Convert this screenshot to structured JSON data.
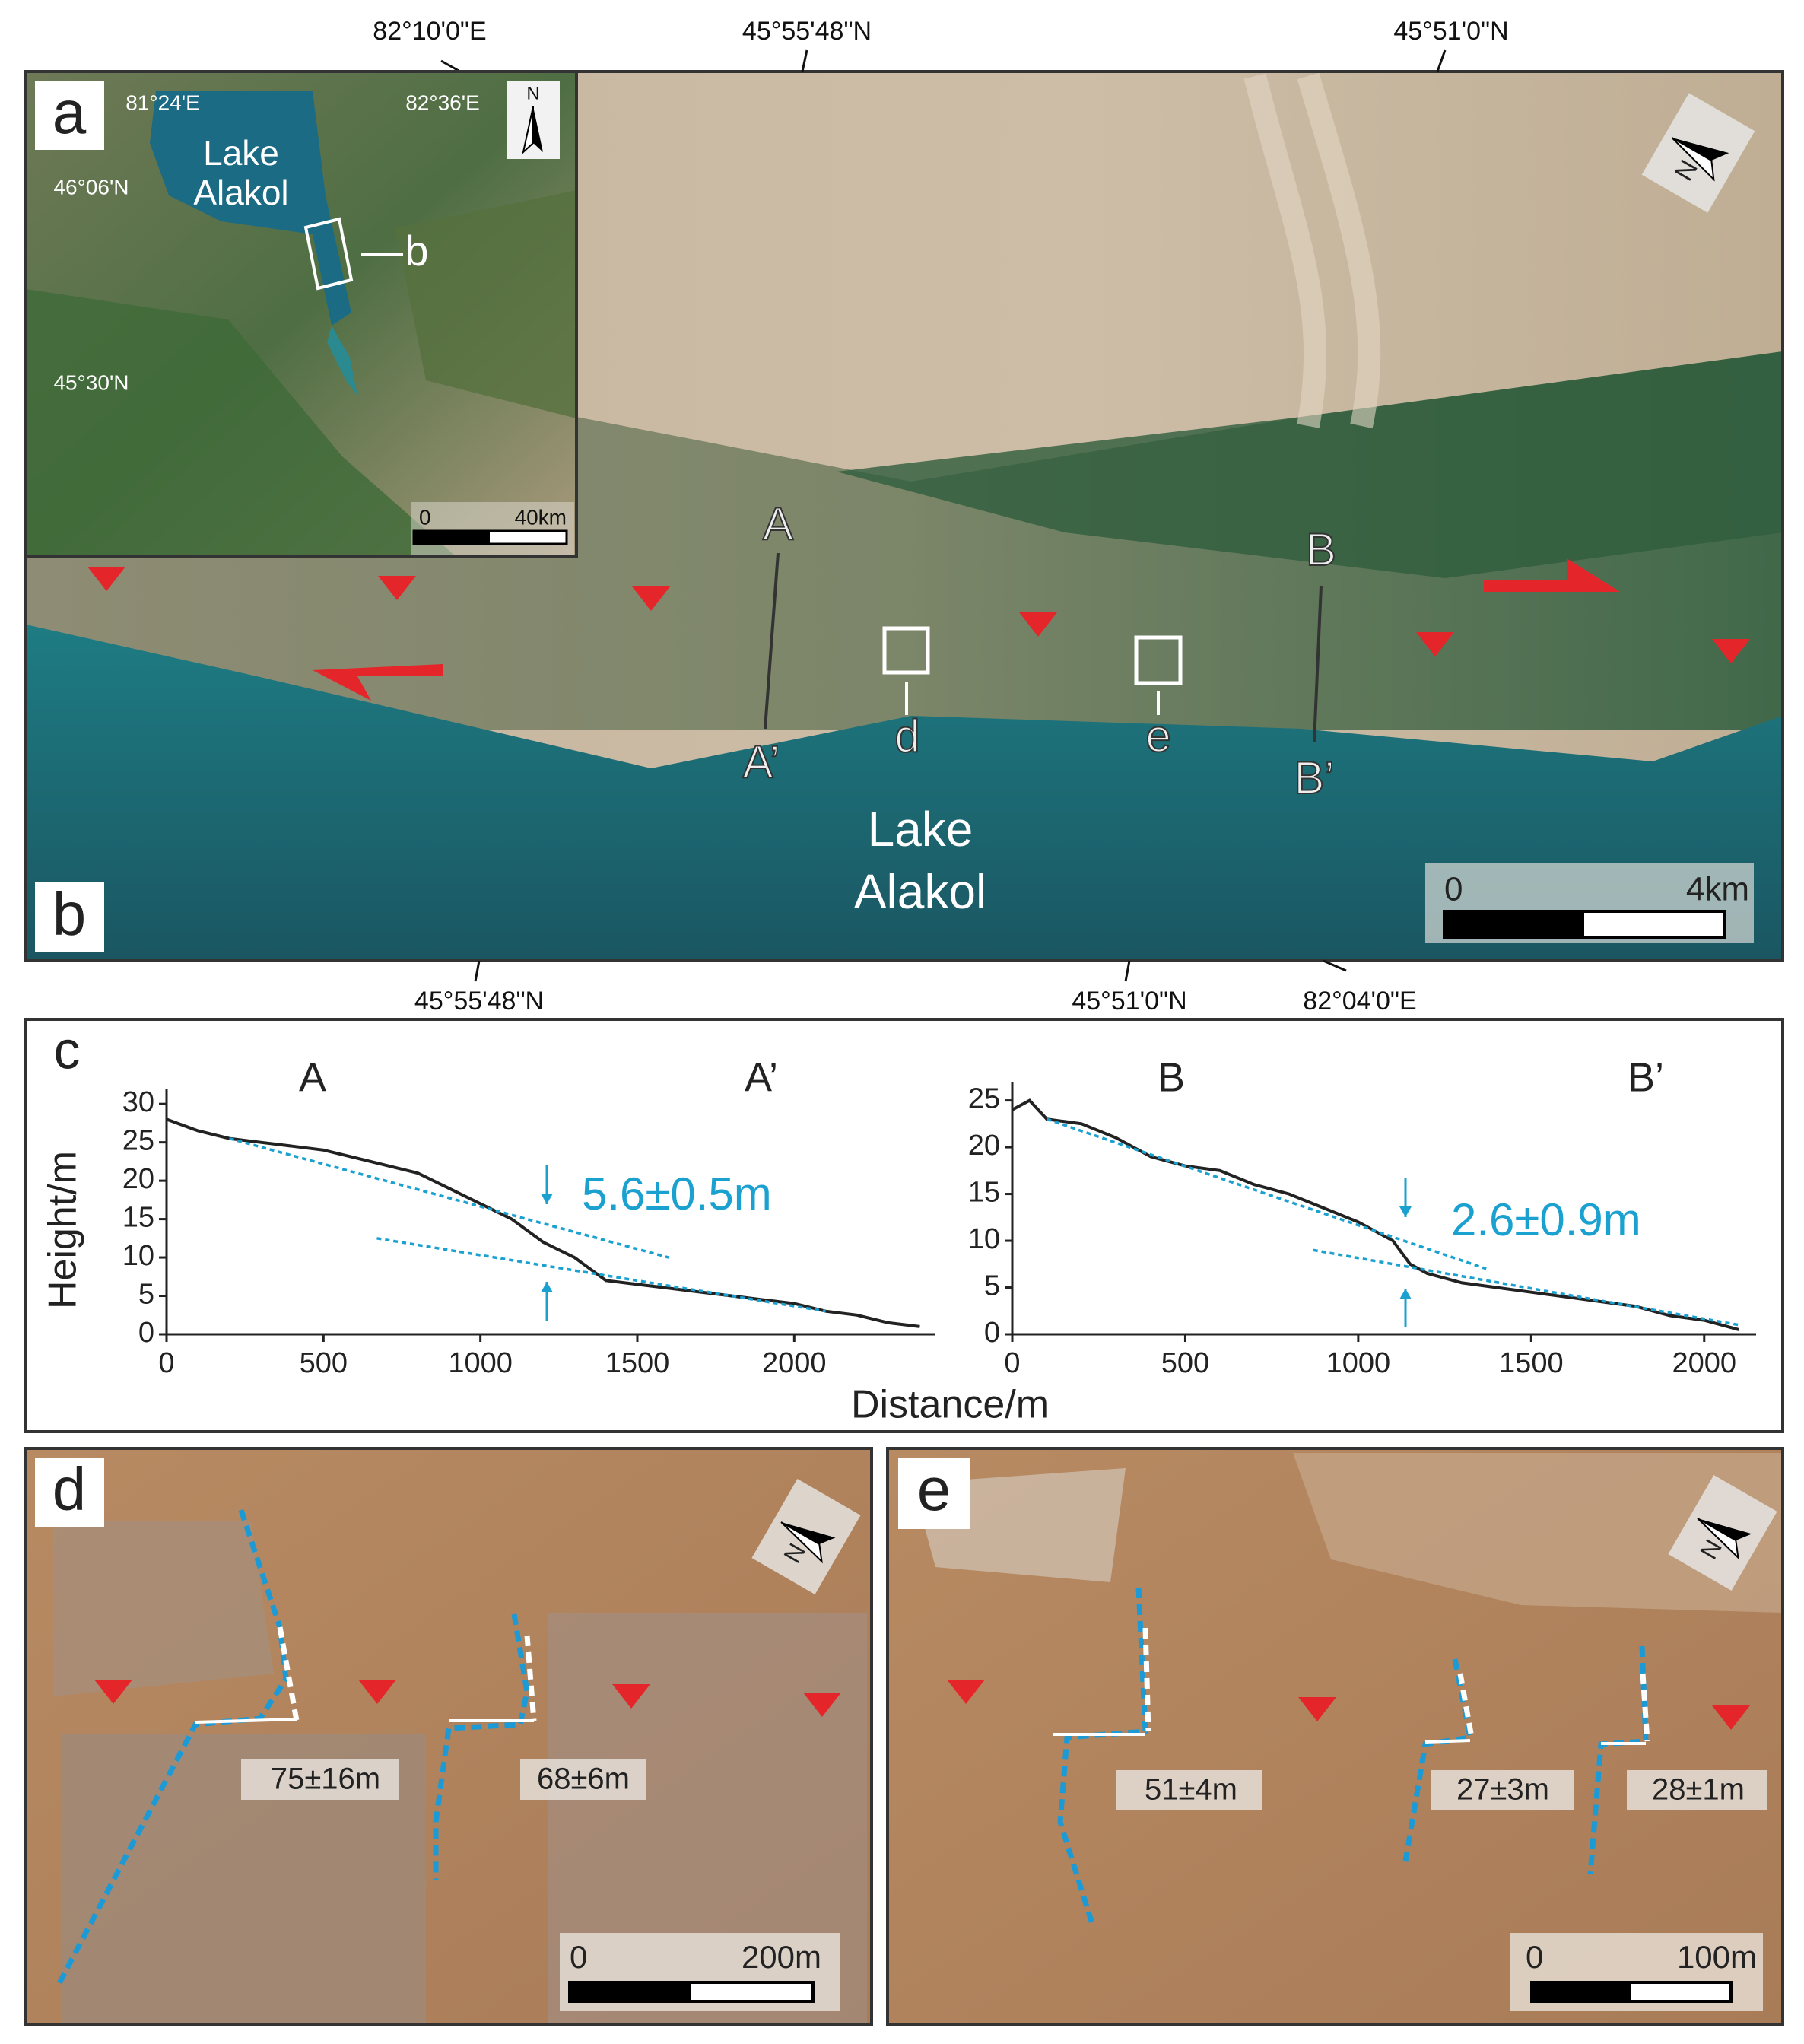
{
  "map_b": {
    "panel_label": "b",
    "north": "N",
    "top_coords": [
      "82°10'0\"E",
      "45°55'48\"N",
      "45°51'0\"N"
    ],
    "bottom_coords": [
      "45°55'48\"N",
      "45°51'0\"N",
      "82°04'0\"E"
    ],
    "profile_labels": [
      "A",
      "A’",
      "B",
      "B’"
    ],
    "box_labels": [
      "d",
      "e"
    ],
    "lake_label": [
      "Lake",
      "Alakol"
    ],
    "scale_labels": [
      "0",
      "4km"
    ]
  },
  "map_a": {
    "panel_label": "a",
    "coords": [
      "81°24'E",
      "82°36'E",
      "46°06'N",
      "45°30'N"
    ],
    "lake_label": [
      "Lake",
      "Alakol"
    ],
    "box_label": "b",
    "north": "N",
    "scale_labels": [
      "0",
      "40km"
    ]
  },
  "panel_c_label": "c",
  "chart_data": [
    {
      "type": "line",
      "start_label": "A",
      "end_label": "A’",
      "annotation": "5.6±0.5m",
      "y_label": "Height/m",
      "x_label": "Distance/m",
      "color": "#222222",
      "fit_color": "#1ba1d0",
      "x": [
        0,
        100,
        200,
        300,
        400,
        500,
        600,
        700,
        800,
        900,
        1000,
        1100,
        1200,
        1300,
        1400,
        1500,
        1600,
        1700,
        1800,
        1900,
        2000,
        2100,
        2200,
        2300,
        2400
      ],
      "values": [
        28,
        26.5,
        25.5,
        25,
        24.5,
        24,
        23,
        22,
        21,
        19,
        17,
        15,
        12,
        10,
        7,
        6.5,
        6,
        5.5,
        5,
        4.5,
        4,
        3,
        2.5,
        1.5,
        1
      ],
      "fit_lines": [
        {
          "x": [
            200,
            1600
          ],
          "values": [
            25.5,
            10
          ]
        },
        {
          "x": [
            670,
            2100
          ],
          "values": [
            12.5,
            3
          ]
        }
      ],
      "xlim": [
        0,
        2450
      ],
      "ylim": [
        0,
        32
      ],
      "xticks": [
        0,
        500,
        1000,
        1500,
        2000
      ],
      "yticks": [
        0,
        5,
        10,
        15,
        20,
        25,
        30
      ]
    },
    {
      "type": "line",
      "start_label": "B",
      "end_label": "B’",
      "annotation": "2.6±0.9m",
      "color": "#222222",
      "fit_color": "#1ba1d0",
      "x": [
        0,
        50,
        100,
        200,
        300,
        400,
        500,
        600,
        700,
        800,
        900,
        1000,
        1100,
        1150,
        1200,
        1300,
        1400,
        1500,
        1600,
        1700,
        1800,
        1900,
        2000,
        2100
      ],
      "values": [
        24,
        25,
        23,
        22.5,
        21,
        19,
        18,
        17.5,
        16,
        15,
        13.5,
        12,
        10,
        7.5,
        6.5,
        5.5,
        5,
        4.5,
        4,
        3.5,
        3,
        2,
        1.5,
        0.5
      ],
      "fit_lines": [
        {
          "x": [
            100,
            1370
          ],
          "values": [
            23,
            7
          ]
        },
        {
          "x": [
            870,
            2100
          ],
          "values": [
            9,
            1
          ]
        }
      ],
      "xlim": [
        0,
        2150
      ],
      "ylim": [
        0,
        27
      ],
      "xticks": [
        0,
        500,
        1000,
        1500,
        2000
      ],
      "yticks": [
        0,
        5,
        10,
        15,
        20,
        25
      ]
    }
  ],
  "photo_d": {
    "panel_label": "d",
    "north": "N",
    "offsets": [
      "75±16m",
      "68±6m"
    ],
    "scale_labels": [
      "0",
      "200m"
    ]
  },
  "photo_e": {
    "panel_label": "e",
    "north": "N",
    "offsets": [
      "51±4m",
      "27±3m",
      "28±1m"
    ],
    "scale_labels": [
      "0",
      "100m"
    ]
  }
}
